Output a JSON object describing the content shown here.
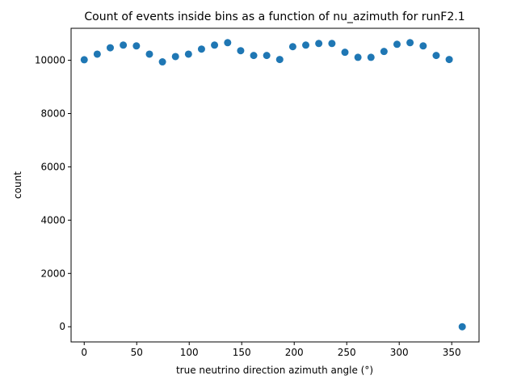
{
  "chart_data": {
    "type": "scatter",
    "title": "Count of events inside bins as a function of nu_azimuth for runF2.1",
    "xlabel": "true neutrino direction azimuth angle (°)",
    "ylabel": "count",
    "xlim": [
      -12.5,
      376
    ],
    "ylim": [
      -570,
      11200
    ],
    "xticks": [
      0,
      50,
      100,
      150,
      200,
      250,
      300,
      350
    ],
    "yticks": [
      0,
      2000,
      4000,
      6000,
      8000,
      10000
    ],
    "marker_color": "#1f77b4",
    "grid": false,
    "x": [
      0,
      12.4,
      24.8,
      37.2,
      49.7,
      62.1,
      74.5,
      86.9,
      99.3,
      111.7,
      124.1,
      136.6,
      149.0,
      161.4,
      173.8,
      186.2,
      198.6,
      211.0,
      223.4,
      235.9,
      248.3,
      260.7,
      273.1,
      285.5,
      297.9,
      310.3,
      322.8,
      335.2,
      347.6,
      360
    ],
    "y": [
      10020,
      10230,
      10470,
      10570,
      10540,
      10230,
      9940,
      10140,
      10230,
      10420,
      10570,
      10660,
      10360,
      10180,
      10180,
      10030,
      10510,
      10570,
      10630,
      10630,
      10300,
      10110,
      10110,
      10330,
      10600,
      10660,
      10540,
      10180,
      10030,
      0
    ]
  }
}
